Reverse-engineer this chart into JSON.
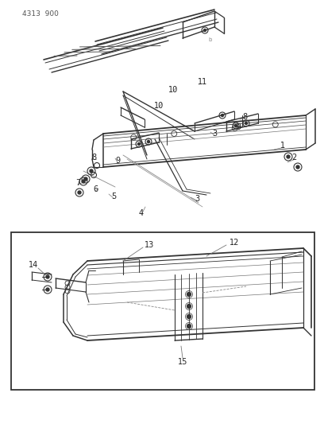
{
  "title": "4313  900",
  "bg_color": "#ffffff",
  "line_color": "#333333",
  "text_color": "#222222",
  "fig_width": 4.08,
  "fig_height": 5.33,
  "dpi": 100
}
